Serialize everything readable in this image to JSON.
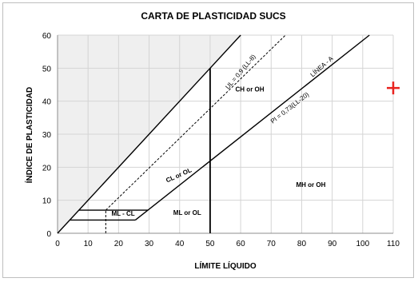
{
  "chart_data": {
    "type": "line",
    "title": "CARTA DE PLASTICIDAD SUCS",
    "xlabel": "LÍMITE LÍQUIDO",
    "ylabel": "ÍNDICE DE PLASTICIDAD",
    "xlim": [
      0,
      110
    ],
    "ylim": [
      0,
      60
    ],
    "xticks": [
      0,
      10,
      20,
      30,
      40,
      50,
      60,
      70,
      80,
      90,
      100,
      110
    ],
    "yticks": [
      0,
      10,
      20,
      30,
      40,
      50,
      60
    ],
    "grid": true,
    "series": [
      {
        "name": "LÍNEA - A",
        "x": [
          25.5,
          102.2
        ],
        "y": [
          4,
          60
        ],
        "color": "#000000",
        "style": "solid"
      },
      {
        "name": "UL = 0,9 (LL-8)",
        "x": [
          15.8,
          74.7
        ],
        "y": [
          7,
          60
        ],
        "color": "#000000",
        "style": "dashed"
      },
      {
        "name": "",
        "x": [
          0,
          60
        ],
        "y": [
          0,
          60
        ],
        "color": "#000000",
        "style": "solid"
      },
      {
        "name": "",
        "x": [
          50,
          50
        ],
        "y": [
          0,
          50
        ],
        "color": "#000000",
        "style": "solid"
      },
      {
        "name": "",
        "x": [
          7,
          29.6
        ],
        "y": [
          7,
          7
        ],
        "color": "#000000",
        "style": "solid"
      },
      {
        "name": "",
        "x": [
          4,
          25.5
        ],
        "y": [
          4,
          4
        ],
        "color": "#000000",
        "style": "solid"
      },
      {
        "name": "",
        "x": [
          15.8,
          15.8
        ],
        "y": [
          0,
          7
        ],
        "color": "#000000",
        "style": "dashed"
      }
    ],
    "shaded_region": {
      "x": [
        0,
        60,
        0
      ],
      "y": [
        0,
        60,
        60
      ],
      "color": "#efefef"
    },
    "annotations": [
      {
        "text": "CH  or  OH",
        "x": 63,
        "y": 43,
        "rotate": 0,
        "kind": "zone"
      },
      {
        "text": "CL  or  OL",
        "x": 40,
        "y": 17,
        "rotate": -24,
        "kind": "zone"
      },
      {
        "text": "ML - CL",
        "x": 21.5,
        "y": 5.3,
        "rotate": 0,
        "kind": "zone"
      },
      {
        "text": "ML  or  OL",
        "x": 42.5,
        "y": 5.6,
        "rotate": 0,
        "kind": "zone"
      },
      {
        "text": "MH  or  OH",
        "x": 83,
        "y": 14,
        "rotate": 0,
        "kind": "zone"
      },
      {
        "text": "UL = 0,9 (LL-8)",
        "x": 60.5,
        "y": 48.5,
        "rotate": -50,
        "kind": "line"
      },
      {
        "text": "LÍNEA - A",
        "x": 87,
        "y": 50,
        "rotate": -41,
        "kind": "line"
      },
      {
        "text": "PI = 0,73(LL-20)",
        "x": 76.5,
        "y": 37.5,
        "rotate": -38,
        "kind": "line"
      }
    ],
    "marker": {
      "x": 110,
      "y": 44,
      "symbol": "+",
      "color": "#e8221e"
    }
  }
}
